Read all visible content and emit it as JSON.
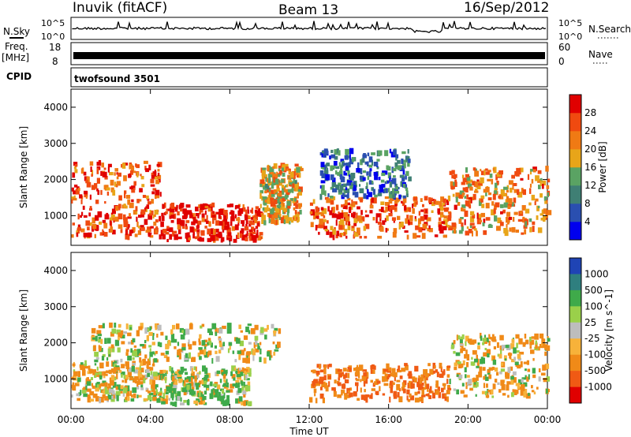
{
  "header": {
    "station": "Inuvik (fitACF)",
    "beam": "Beam 13",
    "date": "16/Sep/2012"
  },
  "panels": {
    "nsky": {
      "label": "N.Sky",
      "tick_top": "10^5",
      "tick_bottom": "10^0",
      "right_top": "10^5",
      "right_bottom": "10^0",
      "right_label": "N.Search"
    },
    "freq": {
      "label_top": "Freq.",
      "label_unit": "[MHz]",
      "tick_top": "18",
      "tick_bottom": "8",
      "right_top": "60",
      "right_bottom": "0",
      "right_label": "Nave"
    },
    "cpid": {
      "label": "CPID",
      "value": "twofsound 3501"
    }
  },
  "chart_data": [
    {
      "type": "heatmap",
      "parameter": "power",
      "ylabel": "Slant Range [km]",
      "xlabel": "",
      "ylim": [
        180,
        4500
      ],
      "yticks": [
        1000,
        2000,
        3000,
        4000
      ],
      "xticks": [
        "00:00",
        "04:00",
        "08:00",
        "12:00",
        "16:00",
        "20:00",
        "00:00"
      ],
      "colorbar": {
        "label": "Power [dB]",
        "ticks": [
          "4",
          "8",
          "12",
          "16",
          "20",
          "24",
          "28"
        ],
        "range": [
          0,
          30
        ],
        "colors": [
          "#0000ee",
          "#2a4fb0",
          "#3f7f74",
          "#5aa363",
          "#e8a519",
          "#f07a14",
          "#f04a10",
          "#e00000"
        ]
      },
      "echo_regions": [
        {
          "t_start": 0.0,
          "t_end": 4.5,
          "r_min": 400,
          "r_max": 2500,
          "level": "strong",
          "value": 24
        },
        {
          "t_start": 4.5,
          "t_end": 9.5,
          "r_min": 300,
          "r_max": 1300,
          "level": "strong",
          "value": 28
        },
        {
          "t_start": 9.5,
          "t_end": 11.5,
          "r_min": 800,
          "r_max": 2400,
          "level": "medium",
          "value": 18
        },
        {
          "t_start": 12.0,
          "t_end": 19.0,
          "r_min": 400,
          "r_max": 1500,
          "level": "strong",
          "value": 24
        },
        {
          "t_start": 12.5,
          "t_end": 17.0,
          "r_min": 1500,
          "r_max": 2800,
          "level": "weak",
          "value": 8
        },
        {
          "t_start": 19.0,
          "t_end": 24.0,
          "r_min": 500,
          "r_max": 2300,
          "level": "medium",
          "value": 20
        }
      ]
    },
    {
      "type": "heatmap",
      "parameter": "velocity",
      "ylabel": "Slant Range [km]",
      "xlabel": "Time UT",
      "ylim": [
        180,
        4500
      ],
      "yticks": [
        1000,
        2000,
        3000,
        4000
      ],
      "xticks": [
        "00:00",
        "04:00",
        "08:00",
        "12:00",
        "16:00",
        "20:00",
        "00:00"
      ],
      "colorbar": {
        "label": "Velocity [m s^-1]",
        "ticks": [
          "1000",
          "500",
          "100",
          "25",
          "-25",
          "-100",
          "-500",
          "-1000"
        ],
        "colors": [
          "#1f44b5",
          "#2f7f7f",
          "#3faa4a",
          "#9ad04a",
          "#bdbdbd",
          "#f7b23a",
          "#f08a18",
          "#f05a14",
          "#e00000"
        ]
      },
      "echo_regions": [
        {
          "t_start": 0.0,
          "t_end": 4.5,
          "r_min": 400,
          "r_max": 1500,
          "level": "negative",
          "value": -100
        },
        {
          "t_start": 1.0,
          "t_end": 10.5,
          "r_min": 1500,
          "r_max": 2500,
          "level": "near-zero",
          "value": 0
        },
        {
          "t_start": 4.5,
          "t_end": 9.0,
          "r_min": 300,
          "r_max": 1300,
          "level": "mixed",
          "value": 100
        },
        {
          "t_start": 12.0,
          "t_end": 19.0,
          "r_min": 400,
          "r_max": 1400,
          "level": "negative",
          "value": -500
        },
        {
          "t_start": 19.0,
          "t_end": 24.0,
          "r_min": 500,
          "r_max": 2200,
          "level": "negative",
          "value": -100
        }
      ]
    }
  ]
}
